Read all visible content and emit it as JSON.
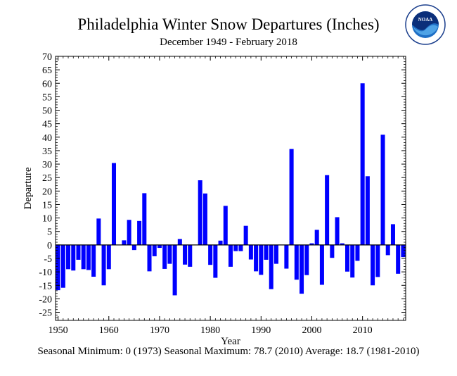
{
  "logo": {
    "text": "NOAA",
    "ring_text": "NATIONAL OCEANIC AND ATMOSPHERIC ADMINISTRATION · U.S. DEPARTMENT OF COMMERCE"
  },
  "chart_data": {
    "type": "bar",
    "title": "Philadelphia Winter Snow Departures (Inches)",
    "subtitle": "December 1949 - February 2018",
    "xlabel": "Year",
    "ylabel": "Departure",
    "xlim": [
      1949.5,
      2018.5
    ],
    "ylim": [
      -28,
      70
    ],
    "xticks": [
      1950,
      1960,
      1970,
      1980,
      1990,
      2000,
      2010
    ],
    "yticks": [
      -25,
      -20,
      -15,
      -10,
      -5,
      0,
      5,
      10,
      15,
      20,
      25,
      30,
      35,
      40,
      45,
      50,
      55,
      60,
      65,
      70
    ],
    "bar_color": "#0000ff",
    "x": [
      1950,
      1951,
      1952,
      1953,
      1954,
      1955,
      1956,
      1957,
      1958,
      1959,
      1960,
      1961,
      1962,
      1963,
      1964,
      1965,
      1966,
      1967,
      1968,
      1969,
      1970,
      1971,
      1972,
      1973,
      1974,
      1975,
      1976,
      1977,
      1978,
      1979,
      1980,
      1981,
      1982,
      1983,
      1984,
      1985,
      1986,
      1987,
      1988,
      1989,
      1990,
      1991,
      1992,
      1993,
      1994,
      1995,
      1996,
      1997,
      1998,
      1999,
      2000,
      2001,
      2002,
      2003,
      2004,
      2005,
      2006,
      2007,
      2008,
      2009,
      2010,
      2011,
      2012,
      2013,
      2014,
      2015,
      2016,
      2017,
      2018
    ],
    "values": [
      -16.8,
      -15.9,
      -9.0,
      -9.5,
      -5.5,
      -9.0,
      -9.3,
      -11.8,
      9.8,
      -15.0,
      -9.0,
      30.4,
      0,
      1.7,
      9.3,
      -1.9,
      8.9,
      19.2,
      -9.8,
      -4.2,
      -1.1,
      -8.9,
      -7.0,
      -18.7,
      2.2,
      -7.3,
      -8.1,
      0,
      24.0,
      19.1,
      -7.4,
      -12.2,
      1.6,
      14.5,
      -8.1,
      -2.3,
      -2.3,
      7.1,
      -5.4,
      -9.8,
      -11.1,
      -5.5,
      -16.4,
      -7.0,
      0,
      -8.8,
      35.6,
      -12.9,
      -18.1,
      -11.2,
      0.6,
      5.6,
      -14.8,
      25.9,
      -4.8,
      10.3,
      0.6,
      -9.9,
      -12.1,
      -5.9,
      60.0,
      25.5,
      -15.0,
      -11.9,
      40.9,
      -3.8,
      7.7,
      -10.7,
      -4.5
    ]
  },
  "footer": "Seasonal Minimum: 0 (1973) Seasonal Maximum: 78.7 (2010) Average: 18.7 (1981-2010)"
}
